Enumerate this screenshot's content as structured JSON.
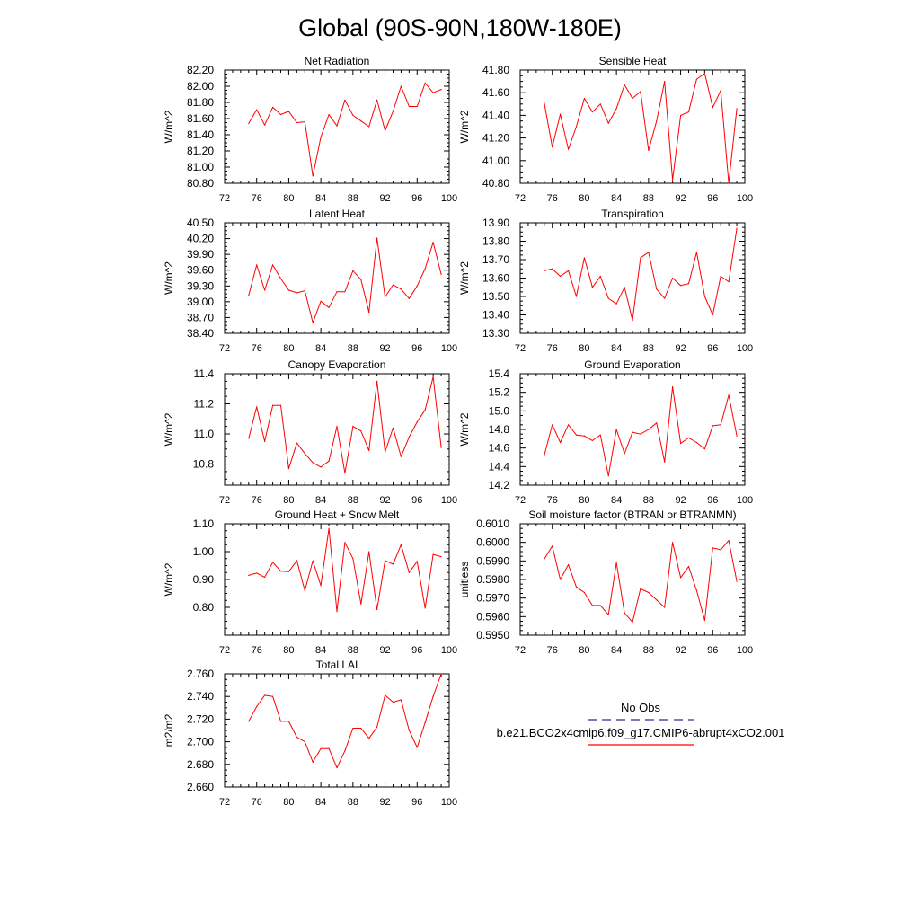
{
  "figure": {
    "title": "Global (90S-90N,180W-180E)"
  },
  "legend": {
    "entries": [
      {
        "label": "No Obs",
        "color": "#2b2b8f",
        "dashed": true
      },
      {
        "label": "b.e21.BCO2x4cmip6.f09_g17.CMIP6-abrupt4xCO2.001",
        "color": "#ff0000",
        "dashed": false
      }
    ]
  },
  "chart_data": [
    {
      "type": "line",
      "title": "Net Radiation",
      "ylabel": "W/m^2",
      "xlim": [
        72,
        100
      ],
      "ylim": [
        80.8,
        82.2
      ],
      "xticks": [
        "72",
        "76",
        "80",
        "84",
        "88",
        "92",
        "96",
        "100"
      ],
      "yticks": [
        "80.80",
        "81.00",
        "81.20",
        "81.40",
        "81.60",
        "81.80",
        "82.00",
        "82.20"
      ],
      "x": [
        75,
        76,
        77,
        78,
        79,
        80,
        81,
        82,
        83,
        84,
        85,
        86,
        87,
        88,
        89,
        90,
        91,
        92,
        93,
        94,
        95,
        96,
        97,
        98,
        99
      ],
      "series": [
        {
          "values": [
            81.54,
            81.71,
            81.52,
            81.74,
            81.65,
            81.69,
            81.55,
            81.56,
            80.89,
            81.37,
            81.65,
            81.51,
            81.83,
            81.64,
            81.57,
            81.5,
            81.83,
            81.45,
            81.69,
            82.0,
            81.75,
            81.75,
            82.04,
            81.92,
            81.96
          ],
          "color": "#ff0000"
        }
      ]
    },
    {
      "type": "line",
      "title": "Sensible Heat",
      "ylabel": "W/m^2",
      "xlim": [
        72,
        100
      ],
      "ylim": [
        40.8,
        41.8
      ],
      "xticks": [
        "72",
        "76",
        "80",
        "84",
        "88",
        "92",
        "96",
        "100"
      ],
      "yticks": [
        "40.80",
        "41.00",
        "41.20",
        "41.40",
        "41.60",
        "41.80"
      ],
      "x": [
        75,
        76,
        77,
        78,
        79,
        80,
        81,
        82,
        83,
        84,
        85,
        86,
        87,
        88,
        89,
        90,
        91,
        92,
        93,
        94,
        95,
        96,
        97,
        98,
        99
      ],
      "series": [
        {
          "values": [
            41.51,
            41.12,
            41.41,
            41.1,
            41.3,
            41.55,
            41.43,
            41.5,
            41.33,
            41.46,
            41.67,
            41.55,
            41.61,
            41.09,
            41.35,
            41.7,
            40.83,
            41.4,
            41.43,
            41.72,
            41.77,
            41.47,
            41.62,
            40.8,
            41.46
          ],
          "color": "#ff0000"
        }
      ]
    },
    {
      "type": "line",
      "title": "Latent Heat",
      "ylabel": "W/m^2",
      "xlim": [
        72,
        100
      ],
      "ylim": [
        38.4,
        40.5
      ],
      "xticks": [
        "72",
        "76",
        "80",
        "84",
        "88",
        "92",
        "96",
        "100"
      ],
      "yticks": [
        "38.40",
        "38.70",
        "39.00",
        "39.30",
        "39.60",
        "39.90",
        "40.20",
        "40.50"
      ],
      "x": [
        75,
        76,
        77,
        78,
        79,
        80,
        81,
        82,
        83,
        84,
        85,
        86,
        87,
        88,
        89,
        90,
        91,
        92,
        93,
        94,
        95,
        96,
        97,
        98,
        99
      ],
      "series": [
        {
          "values": [
            39.12,
            39.7,
            39.22,
            39.7,
            39.44,
            39.22,
            39.17,
            39.21,
            38.6,
            39.01,
            38.89,
            39.19,
            39.19,
            39.59,
            39.42,
            38.8,
            40.21,
            39.09,
            39.32,
            39.24,
            39.06,
            39.3,
            39.63,
            40.13,
            39.52
          ],
          "color": "#ff0000"
        }
      ]
    },
    {
      "type": "line",
      "title": "Transpiration",
      "ylabel": "W/m^2",
      "xlim": [
        72,
        100
      ],
      "ylim": [
        13.3,
        13.9
      ],
      "xticks": [
        "72",
        "76",
        "80",
        "84",
        "88",
        "92",
        "96",
        "100"
      ],
      "yticks": [
        "13.30",
        "13.40",
        "13.50",
        "13.60",
        "13.70",
        "13.80",
        "13.90"
      ],
      "x": [
        75,
        76,
        77,
        78,
        79,
        80,
        81,
        82,
        83,
        84,
        85,
        86,
        87,
        88,
        89,
        90,
        91,
        92,
        93,
        94,
        95,
        96,
        97,
        98,
        99
      ],
      "series": [
        {
          "values": [
            13.64,
            13.65,
            13.61,
            13.64,
            13.5,
            13.71,
            13.55,
            13.61,
            13.49,
            13.46,
            13.55,
            13.37,
            13.71,
            13.74,
            13.54,
            13.49,
            13.6,
            13.56,
            13.57,
            13.74,
            13.5,
            13.4,
            13.61,
            13.58,
            13.87
          ],
          "color": "#ff0000"
        }
      ]
    },
    {
      "type": "line",
      "title": "Canopy Evaporation",
      "ylabel": "W/m^2",
      "xlim": [
        72,
        100
      ],
      "ylim": [
        10.66,
        11.4
      ],
      "xticks": [
        "72",
        "76",
        "80",
        "84",
        "88",
        "92",
        "96",
        "100"
      ],
      "yticks": [
        "10.8",
        "11.0",
        "11.2",
        "11.4"
      ],
      "ytick_values": [
        10.8,
        11.0,
        11.2,
        11.4
      ],
      "x": [
        75,
        76,
        77,
        78,
        79,
        80,
        81,
        82,
        83,
        84,
        85,
        86,
        87,
        88,
        89,
        90,
        91,
        92,
        93,
        94,
        95,
        96,
        97,
        98,
        99
      ],
      "series": [
        {
          "values": [
            10.97,
            11.18,
            10.95,
            11.19,
            11.19,
            10.77,
            10.94,
            10.87,
            10.81,
            10.78,
            10.82,
            11.05,
            10.74,
            11.05,
            11.02,
            10.89,
            11.35,
            10.88,
            11.04,
            10.85,
            10.98,
            11.08,
            11.16,
            11.38,
            10.91
          ],
          "color": "#ff0000"
        }
      ]
    },
    {
      "type": "line",
      "title": "Ground Evaporation",
      "ylabel": "W/m^2",
      "xlim": [
        72,
        100
      ],
      "ylim": [
        14.2,
        15.4
      ],
      "xticks": [
        "72",
        "76",
        "80",
        "84",
        "88",
        "92",
        "96",
        "100"
      ],
      "yticks": [
        "14.2",
        "14.4",
        "14.6",
        "14.8",
        "15.0",
        "15.2",
        "15.4"
      ],
      "x": [
        75,
        76,
        77,
        78,
        79,
        80,
        81,
        82,
        83,
        84,
        85,
        86,
        87,
        88,
        89,
        90,
        91,
        92,
        93,
        94,
        95,
        96,
        97,
        98,
        99
      ],
      "series": [
        {
          "values": [
            14.52,
            14.85,
            14.66,
            14.85,
            14.74,
            14.73,
            14.68,
            14.74,
            14.3,
            14.8,
            14.54,
            14.77,
            14.75,
            14.8,
            14.87,
            14.45,
            15.26,
            14.65,
            14.71,
            14.66,
            14.59,
            14.84,
            14.85,
            15.17,
            14.73
          ],
          "color": "#ff0000"
        }
      ]
    },
    {
      "type": "line",
      "title": "Ground Heat + Snow Melt",
      "ylabel": "W/m^2",
      "xlim": [
        72,
        100
      ],
      "ylim": [
        0.7,
        1.1
      ],
      "xticks": [
        "72",
        "76",
        "80",
        "84",
        "88",
        "92",
        "96",
        "100"
      ],
      "yticks": [
        "0.80",
        "0.90",
        "1.00",
        "1.10"
      ],
      "ytick_values": [
        0.8,
        0.9,
        1.0,
        1.1
      ],
      "x": [
        75,
        76,
        77,
        78,
        79,
        80,
        81,
        82,
        83,
        84,
        85,
        86,
        87,
        88,
        89,
        90,
        91,
        92,
        93,
        94,
        95,
        96,
        97,
        98,
        99
      ],
      "series": [
        {
          "values": [
            0.915,
            0.923,
            0.908,
            0.962,
            0.93,
            0.928,
            0.968,
            0.86,
            0.967,
            0.878,
            1.083,
            0.785,
            1.033,
            0.975,
            0.812,
            1.0,
            0.792,
            0.968,
            0.955,
            1.025,
            0.925,
            0.965,
            0.797,
            0.99,
            0.982
          ],
          "color": "#ff0000"
        }
      ]
    },
    {
      "type": "line",
      "title": "Soil moisture factor (BTRAN or BTRANMN)",
      "ylabel": "unitless",
      "xlim": [
        72,
        100
      ],
      "ylim": [
        0.595,
        0.601
      ],
      "xticks": [
        "72",
        "76",
        "80",
        "84",
        "88",
        "92",
        "96",
        "100"
      ],
      "yticks": [
        "0.5950",
        "0.5960",
        "0.5970",
        "0.5980",
        "0.5990",
        "0.6000",
        "0.6010"
      ],
      "x": [
        75,
        76,
        77,
        78,
        79,
        80,
        81,
        82,
        83,
        84,
        85,
        86,
        87,
        88,
        89,
        90,
        91,
        92,
        93,
        94,
        95,
        96,
        97,
        98,
        99
      ],
      "series": [
        {
          "values": [
            0.5991,
            0.5998,
            0.598,
            0.5988,
            0.5976,
            0.5973,
            0.5966,
            0.5966,
            0.5961,
            0.5989,
            0.5962,
            0.5957,
            0.5975,
            0.5973,
            0.5969,
            0.5965,
            0.6,
            0.5981,
            0.5987,
            0.5974,
            0.5958,
            0.5997,
            0.5996,
            0.6001,
            0.5979
          ],
          "color": "#ff0000"
        }
      ]
    },
    {
      "type": "line",
      "title": "Total LAI",
      "ylabel": "m2/m2",
      "xlim": [
        72,
        100
      ],
      "ylim": [
        2.66,
        2.76
      ],
      "xticks": [
        "72",
        "76",
        "80",
        "84",
        "88",
        "92",
        "96",
        "100"
      ],
      "yticks": [
        "2.660",
        "2.680",
        "2.700",
        "2.720",
        "2.740",
        "2.760"
      ],
      "x": [
        75,
        76,
        77,
        78,
        79,
        80,
        81,
        82,
        83,
        84,
        85,
        86,
        87,
        88,
        89,
        90,
        91,
        92,
        93,
        94,
        95,
        96,
        97,
        98,
        99
      ],
      "series": [
        {
          "values": [
            2.718,
            2.731,
            2.741,
            2.74,
            2.718,
            2.718,
            2.704,
            2.7,
            2.682,
            2.694,
            2.694,
            2.677,
            2.692,
            2.712,
            2.712,
            2.703,
            2.713,
            2.741,
            2.735,
            2.737,
            2.71,
            2.695,
            2.717,
            2.74,
            2.76
          ],
          "color": "#ff0000"
        }
      ]
    }
  ]
}
